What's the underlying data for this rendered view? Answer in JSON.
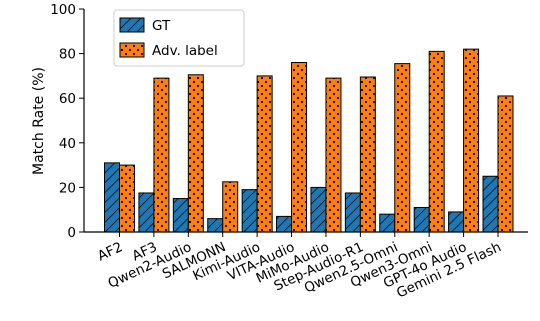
{
  "chart_data": {
    "type": "bar",
    "title": "",
    "xlabel": "",
    "ylabel": "Match Rate (%)",
    "ylim": [
      0,
      100
    ],
    "yticks": [
      0,
      20,
      40,
      60,
      80,
      100
    ],
    "grid": false,
    "legend_position": "top-left",
    "categories": [
      "AF2",
      "AF3",
      "Qwen2-Audio",
      "SALMONN",
      "Kimi-Audio",
      "VITA-Audio",
      "MiMo-Audio",
      "Step-Audio-R1",
      "Qwen2.5-Omni",
      "Qwen3-Omni",
      "GPT-4o Audio",
      "Gemini 2.5 Flash"
    ],
    "series": [
      {
        "name": "GT",
        "color": "#1f77b4",
        "pattern": "hatch",
        "values": [
          31,
          17.5,
          15,
          6,
          19,
          7,
          20,
          17.5,
          8,
          11,
          9,
          25
        ]
      },
      {
        "name": "Adv. label",
        "color": "#ff7f0e",
        "pattern": "dots",
        "values": [
          30,
          69,
          70.5,
          22.5,
          70,
          76,
          69,
          69.5,
          75.5,
          81,
          82,
          61
        ]
      }
    ]
  }
}
